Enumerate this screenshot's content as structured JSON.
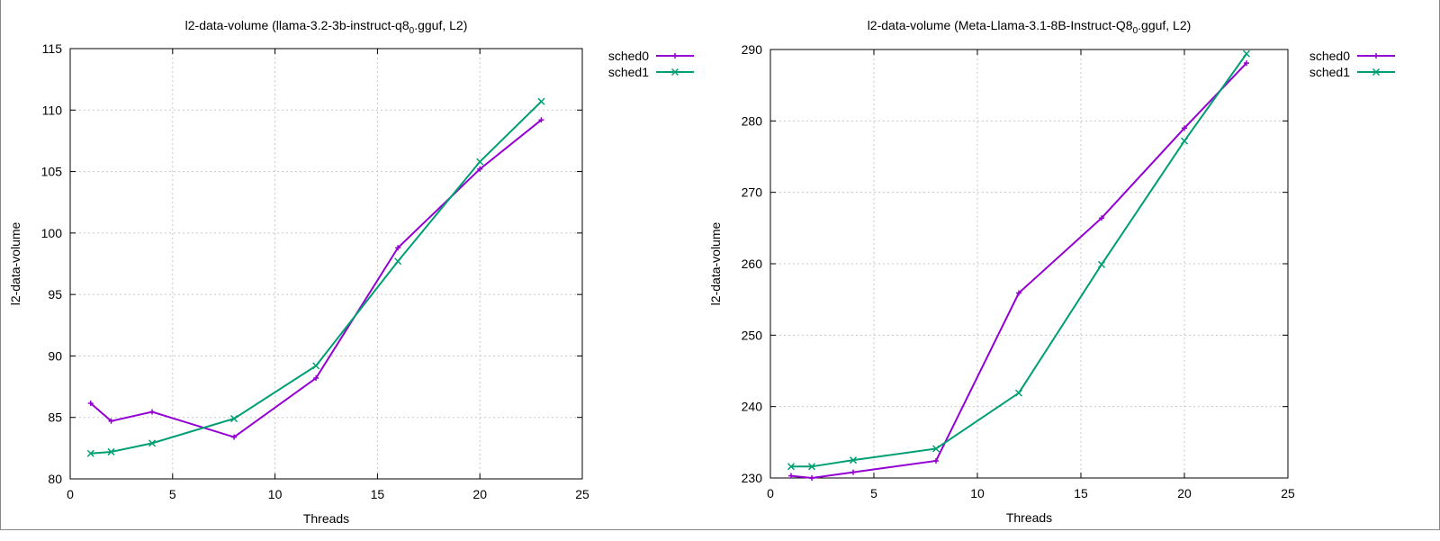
{
  "chart_data": [
    {
      "type": "line",
      "title": "l2-data-volume (llama-3.2-3b-instruct-q8",
      "title_sub": "0",
      "title_suffix": ".gguf, L2)",
      "xlabel": "Threads",
      "ylabel": "l2-data-volume",
      "xlim": [
        0,
        25
      ],
      "ylim": [
        80,
        115
      ],
      "xticks": [
        0,
        5,
        10,
        15,
        20,
        25
      ],
      "yticks": [
        80,
        85,
        90,
        95,
        100,
        105,
        110,
        115
      ],
      "grid": true,
      "legend_placement": "outside-top-right",
      "x": [
        1,
        2,
        4,
        8,
        12,
        16,
        20,
        23
      ],
      "series": [
        {
          "name": "sched0",
          "color": "#9400d3",
          "marker": "plus",
          "values": [
            86.15,
            84.7,
            85.45,
            83.4,
            88.2,
            98.8,
            105.2,
            109.2
          ]
        },
        {
          "name": "sched1",
          "color": "#009e73",
          "marker": "cross",
          "values": [
            82.07,
            82.2,
            82.9,
            84.9,
            89.2,
            97.7,
            105.8,
            110.7
          ]
        }
      ]
    },
    {
      "type": "line",
      "title": "l2-data-volume (Meta-Llama-3.1-8B-Instruct-Q8",
      "title_sub": "0",
      "title_suffix": ".gguf, L2)",
      "xlabel": "Threads",
      "ylabel": "l2-data-volume",
      "xlim": [
        0,
        25
      ],
      "ylim": [
        230,
        290
      ],
      "xticks": [
        0,
        5,
        10,
        15,
        20,
        25
      ],
      "yticks": [
        230,
        240,
        250,
        260,
        270,
        280,
        290
      ],
      "grid": true,
      "legend_placement": "outside-top-right",
      "x": [
        1,
        2,
        4,
        8,
        12,
        16,
        20,
        23
      ],
      "series": [
        {
          "name": "sched0",
          "color": "#9400d3",
          "marker": "plus",
          "values": [
            230.3,
            230.0,
            230.8,
            232.4,
            255.9,
            266.4,
            279.0,
            288.1
          ]
        },
        {
          "name": "sched1",
          "color": "#009e73",
          "marker": "cross",
          "values": [
            231.6,
            231.6,
            232.5,
            234.1,
            241.9,
            259.9,
            277.2,
            289.4
          ]
        }
      ]
    }
  ]
}
